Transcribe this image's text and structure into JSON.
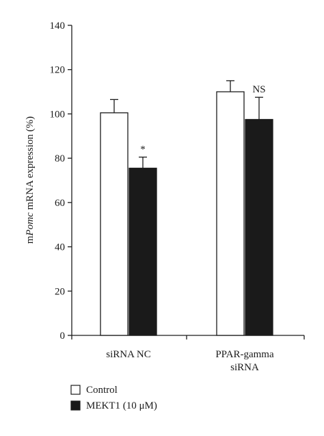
{
  "chart_data": {
    "type": "bar",
    "title": "",
    "xlabel": "",
    "ylabel": {
      "prefix": "m",
      "italic": "Pomc",
      "suffix": " mRNA expression (%)"
    },
    "ylim": [
      0,
      140
    ],
    "yticks": [
      0,
      20,
      40,
      60,
      80,
      100,
      120,
      140
    ],
    "categories": [
      [
        "siRNA NC"
      ],
      [
        "PPAR-gamma",
        "siRNA"
      ]
    ],
    "series": [
      {
        "name": "Control",
        "fill": "#ffffff",
        "values": [
          100.5,
          110
        ],
        "errors": [
          6,
          5
        ]
      },
      {
        "name": "MEKT1 (10 μM)",
        "fill": "#1a1a1a",
        "values": [
          75.5,
          97.5
        ],
        "errors": [
          5,
          10
        ]
      }
    ],
    "annotations": [
      {
        "series": 1,
        "category": 0,
        "text": "*"
      },
      {
        "series": 1,
        "category": 1,
        "text": "NS"
      }
    ],
    "grid": false,
    "legend_position": "bottom-left"
  }
}
